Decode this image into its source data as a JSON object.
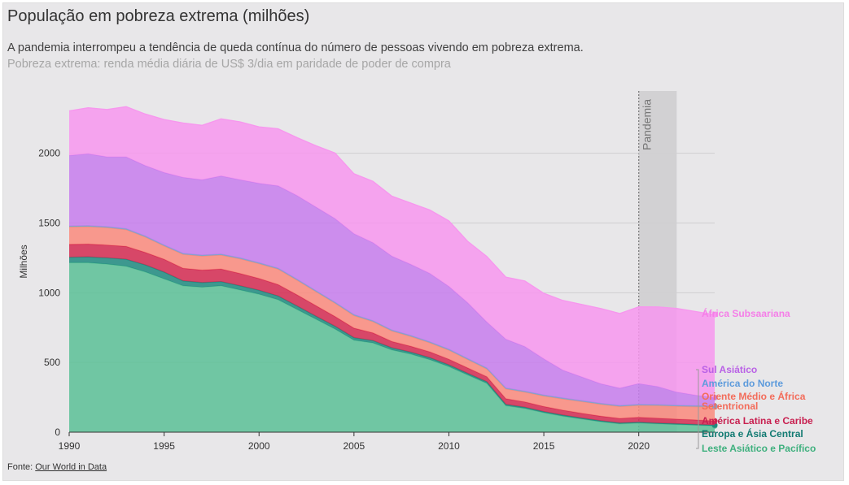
{
  "title": "População em pobreza extrema (milhões)",
  "subtitle": "A pandemia interrompeu a tendência de queda contínua do número de pessoas vivendo em pobreza extrema.",
  "note": "Pobreza extrema: renda média diária de US$ 3/dia em paridade de poder de compra",
  "source_label": "Fonte:",
  "source_link": "Our World in Data",
  "chart_data": {
    "type": "area",
    "stacked": true,
    "title": "População em pobreza extrema (milhões)",
    "xlabel": "",
    "ylabel": "Milhões",
    "xlim": [
      1990,
      2024
    ],
    "ylim": [
      0,
      2400
    ],
    "x_ticks": [
      1990,
      1995,
      2000,
      2005,
      2010,
      2015,
      2020
    ],
    "y_ticks": [
      0,
      500,
      1000,
      1500,
      2000
    ],
    "grid": true,
    "annotation": {
      "label": "Pandemia",
      "x_start": 2020,
      "x_end": 2022
    },
    "x": [
      1990,
      1991,
      1992,
      1993,
      1994,
      1995,
      1996,
      1997,
      1998,
      1999,
      2000,
      2001,
      2002,
      2003,
      2004,
      2005,
      2006,
      2007,
      2008,
      2009,
      2010,
      2011,
      2012,
      2013,
      2014,
      2015,
      2016,
      2017,
      2018,
      2019,
      2020,
      2021,
      2022,
      2023,
      2024
    ],
    "series": [
      {
        "name": "Leste Asiático e Pacífico",
        "color": "#5bbf96",
        "values": [
          1215,
          1215,
          1205,
          1190,
          1150,
          1100,
          1050,
          1040,
          1050,
          1020,
          990,
          950,
          880,
          810,
          740,
          660,
          640,
          590,
          560,
          520,
          470,
          410,
          350,
          190,
          170,
          140,
          115,
          95,
          75,
          60,
          65,
          60,
          55,
          50,
          45
        ]
      },
      {
        "name": "Europa e Ásia Central",
        "color": "#1f8a7f",
        "values": [
          40,
          42,
          45,
          50,
          50,
          48,
          35,
          33,
          30,
          30,
          28,
          27,
          25,
          22,
          20,
          18,
          17,
          15,
          14,
          14,
          13,
          12,
          12,
          10,
          9,
          8,
          8,
          7,
          7,
          7,
          7,
          6,
          6,
          6,
          6
        ]
      },
      {
        "name": "América Latina e Caribe",
        "color": "#d32a51",
        "values": [
          92,
          92,
          92,
          92,
          90,
          92,
          90,
          90,
          90,
          88,
          85,
          82,
          80,
          75,
          70,
          68,
          55,
          45,
          42,
          42,
          40,
          38,
          36,
          40,
          38,
          36,
          35,
          34,
          33,
          32,
          35,
          35,
          33,
          32,
          30
        ]
      },
      {
        "name": "Oriente Médio e África Setentrional",
        "color": "#fa8a7c",
        "values": [
          125,
          125,
          125,
          120,
          110,
          95,
          100,
          100,
          100,
          105,
          105,
          110,
          105,
          100,
          95,
          90,
          80,
          75,
          70,
          65,
          65,
          60,
          55,
          70,
          70,
          75,
          80,
          83,
          85,
          85,
          85,
          90,
          92,
          95,
          100
        ]
      },
      {
        "name": "América do Norte",
        "color": "#7fa4cc",
        "values": [
          7,
          7,
          7,
          7,
          7,
          7,
          7,
          7,
          7,
          7,
          7,
          7,
          7,
          7,
          7,
          7,
          7,
          7,
          7,
          7,
          7,
          7,
          7,
          7,
          7,
          7,
          7,
          7,
          7,
          7,
          7,
          7,
          7,
          7,
          7
        ]
      },
      {
        "name": "Sul Asiático",
        "color": "#c77ded",
        "values": [
          505,
          515,
          500,
          515,
          505,
          520,
          545,
          540,
          560,
          560,
          570,
          590,
          600,
          600,
          600,
          580,
          560,
          530,
          510,
          490,
          450,
          400,
          330,
          350,
          320,
          260,
          200,
          170,
          140,
          125,
          150,
          130,
          95,
          75,
          60
        ]
      },
      {
        "name": "África Subsaariana",
        "color": "#f796ee",
        "values": [
          320,
          330,
          340,
          360,
          370,
          380,
          390,
          390,
          410,
          415,
          405,
          410,
          415,
          440,
          470,
          430,
          440,
          430,
          440,
          455,
          470,
          440,
          470,
          445,
          470,
          470,
          500,
          520,
          540,
          535,
          550,
          570,
          600,
          600,
          595
        ]
      }
    ]
  },
  "legend": [
    {
      "label": "África Subsaariana",
      "color": "#f796ee",
      "text_color": "#f57ee8"
    },
    {
      "label": "Sul Asiático",
      "color": "#c77ded",
      "text_color": "#b961e6"
    },
    {
      "label": "América do Norte",
      "color": "#7fa4cc",
      "text_color": "#5d9bdc"
    },
    {
      "label": "Oriente Médio e África",
      "color": "#fa8a7c",
      "text_color": "#f36c5a"
    },
    {
      "label": "Setentrional",
      "color": "#fa8a7c",
      "text_color": "#f36c5a"
    },
    {
      "label": "América Latina e Caribe",
      "color": "#d32a51",
      "text_color": "#c82050"
    },
    {
      "label": "Europa e Ásia Central",
      "color": "#1f8a7f",
      "text_color": "#127a72"
    },
    {
      "label": "Leste Asiático e Pacífico",
      "color": "#5bbf96",
      "text_color": "#3fb07e"
    }
  ]
}
